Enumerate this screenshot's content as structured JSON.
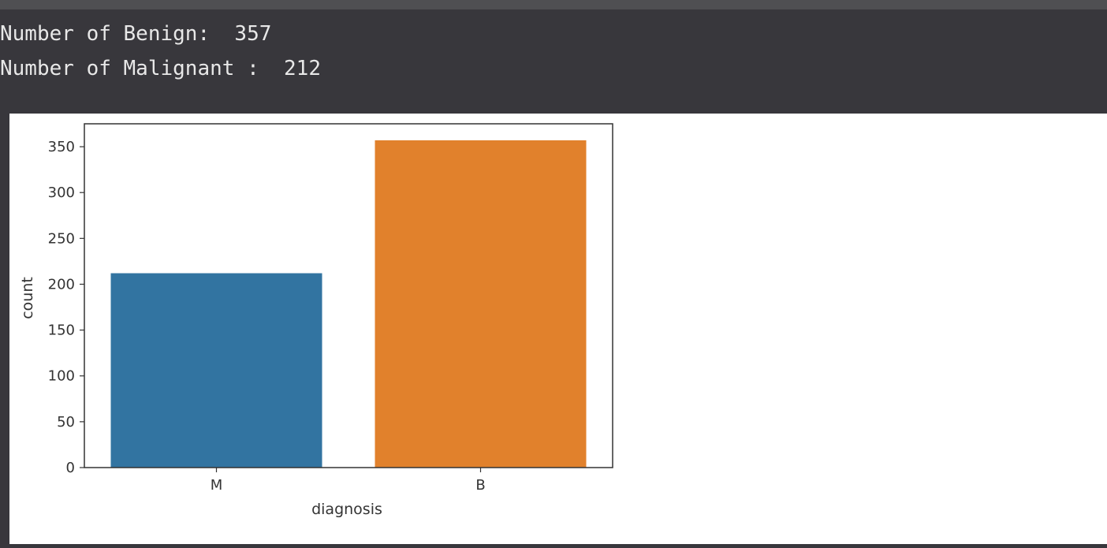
{
  "output": {
    "line1": "Number of Benign:  357",
    "line2": "Number of Malignant :  212"
  },
  "chart_data": {
    "type": "bar",
    "categories": [
      "M",
      "B"
    ],
    "values": [
      212,
      357
    ],
    "colors": [
      "#3274a1",
      "#e1812c"
    ],
    "xlabel": "diagnosis",
    "ylabel": "count",
    "ylim": [
      0,
      375
    ],
    "yticks": [
      0,
      50,
      100,
      150,
      200,
      250,
      300,
      350
    ],
    "grid": false
  }
}
